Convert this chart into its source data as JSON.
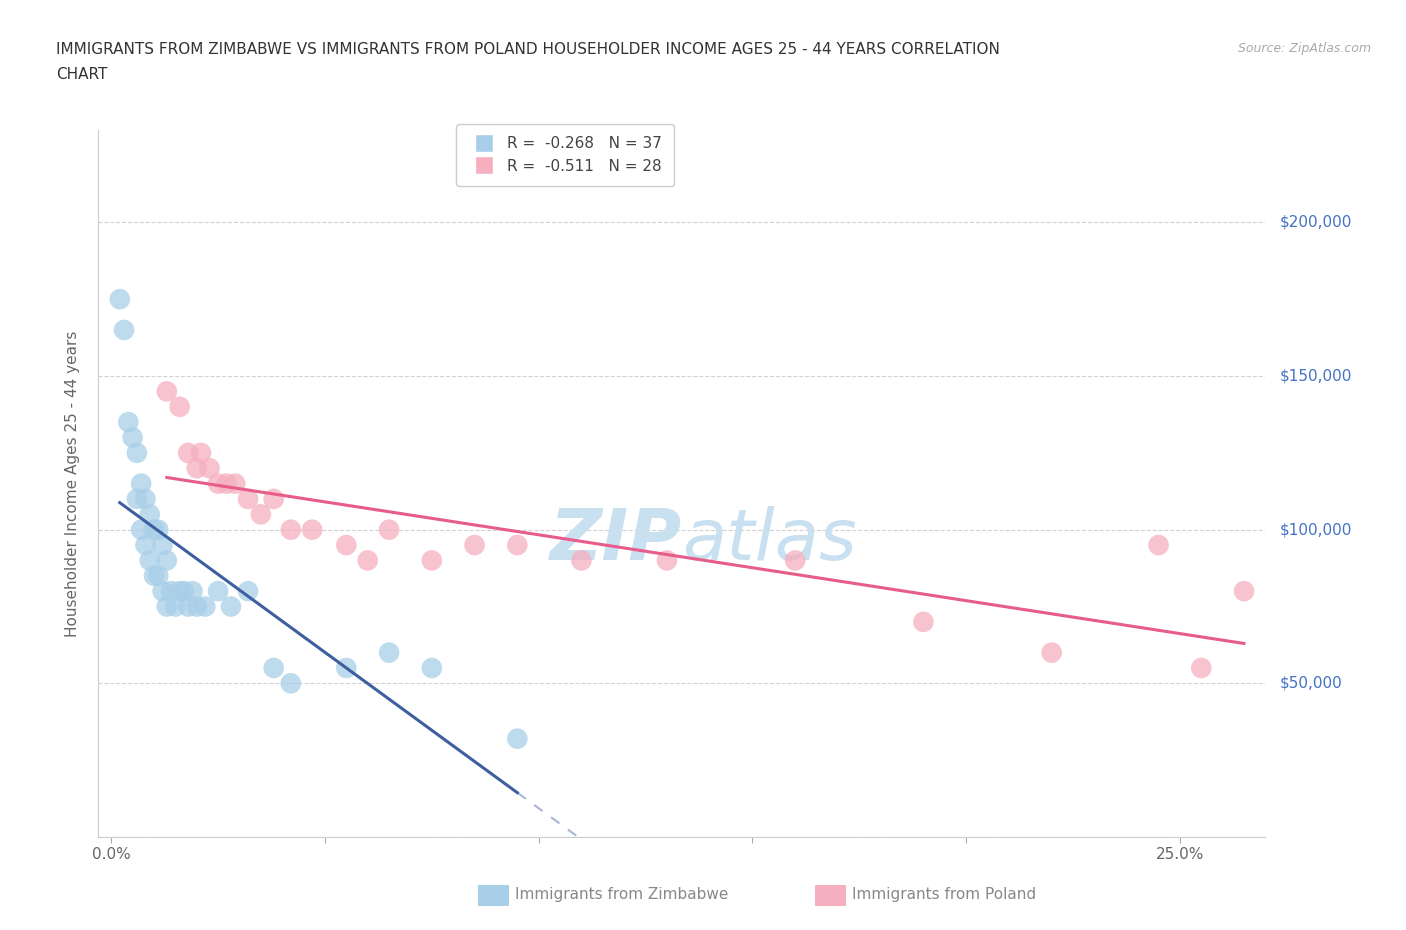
{
  "title_line1": "IMMIGRANTS FROM ZIMBABWE VS IMMIGRANTS FROM POLAND HOUSEHOLDER INCOME AGES 25 - 44 YEARS CORRELATION",
  "title_line2": "CHART",
  "source_text": "Source: ZipAtlas.com",
  "ylabel": "Householder Income Ages 25 - 44 years",
  "ylim": [
    0,
    230000
  ],
  "xlim": [
    -0.003,
    0.27
  ],
  "yticks": [
    0,
    50000,
    100000,
    150000,
    200000
  ],
  "ytick_labels": [
    "",
    "$50,000",
    "$100,000",
    "$150,000",
    "$200,000"
  ],
  "xticks": [
    0.0,
    0.05,
    0.1,
    0.15,
    0.2,
    0.25
  ],
  "r_zimbabwe": -0.268,
  "n_zimbabwe": 37,
  "r_poland": -0.511,
  "n_poland": 28,
  "color_zimbabwe": "#A8CEE8",
  "color_poland": "#F5AFBE",
  "color_line_zimbabwe": "#3D5FA0",
  "color_line_poland": "#E85C8A",
  "color_ytick_labels": "#4472C4",
  "color_title": "#333333",
  "color_source": "#AAAAAA",
  "background_color": "#FFFFFF",
  "grid_color": "#CCCCCC",
  "watermark_color": "#C8E0F0",
  "zimbabwe_x": [
    0.002,
    0.003,
    0.004,
    0.005,
    0.006,
    0.006,
    0.007,
    0.007,
    0.008,
    0.008,
    0.009,
    0.009,
    0.01,
    0.01,
    0.011,
    0.011,
    0.012,
    0.012,
    0.013,
    0.013,
    0.014,
    0.015,
    0.016,
    0.017,
    0.018,
    0.019,
    0.02,
    0.022,
    0.025,
    0.028,
    0.032,
    0.038,
    0.042,
    0.055,
    0.065,
    0.075,
    0.095
  ],
  "zimbabwe_y": [
    175000,
    165000,
    135000,
    130000,
    125000,
    110000,
    115000,
    100000,
    110000,
    95000,
    105000,
    90000,
    100000,
    85000,
    100000,
    85000,
    95000,
    80000,
    90000,
    75000,
    80000,
    75000,
    80000,
    80000,
    75000,
    80000,
    75000,
    75000,
    80000,
    75000,
    80000,
    55000,
    50000,
    55000,
    60000,
    55000,
    32000
  ],
  "poland_x": [
    0.013,
    0.016,
    0.018,
    0.02,
    0.021,
    0.023,
    0.025,
    0.027,
    0.029,
    0.032,
    0.035,
    0.038,
    0.042,
    0.047,
    0.055,
    0.06,
    0.065,
    0.075,
    0.085,
    0.095,
    0.11,
    0.13,
    0.16,
    0.19,
    0.22,
    0.245,
    0.255,
    0.265
  ],
  "poland_y": [
    145000,
    140000,
    125000,
    120000,
    125000,
    120000,
    115000,
    115000,
    115000,
    110000,
    105000,
    110000,
    100000,
    100000,
    95000,
    90000,
    100000,
    90000,
    95000,
    95000,
    90000,
    90000,
    90000,
    70000,
    60000,
    95000,
    55000,
    80000
  ]
}
